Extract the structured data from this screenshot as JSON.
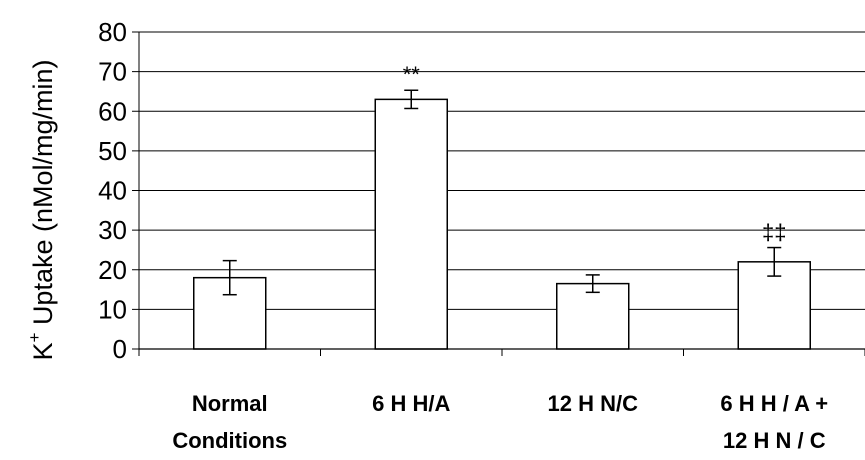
{
  "chart_data": {
    "type": "bar",
    "title": "",
    "xlabel": "",
    "ylabel": {
      "base": "K",
      "superscript": "+",
      "rest": " Uptake (nMol/mg/min)"
    },
    "ylim": [
      0,
      80
    ],
    "yticks": [
      0,
      10,
      20,
      30,
      40,
      50,
      60,
      70,
      80
    ],
    "grid": true,
    "legend": "none",
    "categories": [
      [
        "Normal",
        "Conditions"
      ],
      [
        "6 H H/A"
      ],
      [
        "12 H N/C"
      ],
      [
        "6 H H / A +",
        "12 H N / C"
      ]
    ],
    "values": [
      18,
      63,
      16.5,
      22
    ],
    "errors": [
      4.3,
      2.3,
      2.2,
      3.6
    ],
    "annotations": [
      "",
      "**",
      "",
      "‡‡"
    ],
    "bar_fill": "#ffffff",
    "bar_stroke": "#000000"
  }
}
